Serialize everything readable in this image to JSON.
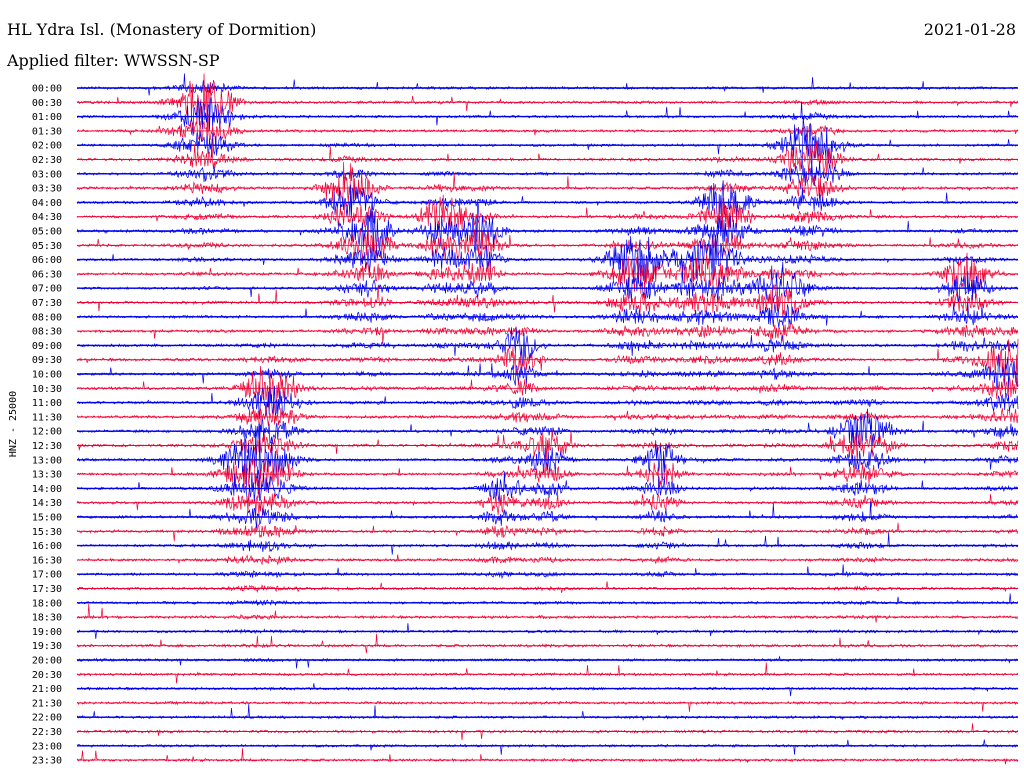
{
  "header": {
    "title": "HL Ydra Isl. (Monastery of Dormition)",
    "date": "2021-01-28",
    "filter": "Applied filter: WWSSN-SP"
  },
  "chart_data": {
    "type": "line",
    "title": "HL Ydra Isl. (Monastery of Dormition)",
    "ylabel": "HNZ - 25000",
    "xlabel": "",
    "tick_labels": [
      "00:00",
      "00:30",
      "01:00",
      "01:30",
      "02:00",
      "02:30",
      "03:00",
      "03:30",
      "04:00",
      "04:30",
      "05:00",
      "05:30",
      "06:00",
      "06:30",
      "07:00",
      "07:30",
      "08:00",
      "08:30",
      "09:00",
      "09:30",
      "10:00",
      "10:30",
      "11:00",
      "11:30",
      "12:00",
      "12:30",
      "13:00",
      "13:30",
      "14:00",
      "14:30",
      "15:00",
      "15:30",
      "16:00",
      "16:30",
      "17:00",
      "17:30",
      "18:00",
      "18:30",
      "19:00",
      "19:30",
      "20:00",
      "20:30",
      "21:00",
      "21:30",
      "22:00",
      "22:30",
      "23:00",
      "23:30"
    ],
    "colors": {
      "even": "#0000ee",
      "odd": "#ee0033"
    },
    "grid": false,
    "legend": "none",
    "bursts": [
      {
        "c": 0.135,
        "w": 0.03,
        "peak_row": 1,
        "end_row": 38,
        "amp": 1.0
      },
      {
        "c": 0.19,
        "w": 0.035,
        "peak_row": 26,
        "end_row": 40,
        "amp": 0.9
      },
      {
        "c": 0.205,
        "w": 0.03,
        "peak_row": 21,
        "end_row": 44,
        "amp": 0.8
      },
      {
        "c": 0.29,
        "w": 0.025,
        "peak_row": 7,
        "end_row": 24,
        "amp": 0.85
      },
      {
        "c": 0.315,
        "w": 0.02,
        "peak_row": 10,
        "end_row": 22,
        "amp": 0.8
      },
      {
        "c": 0.39,
        "w": 0.025,
        "peak_row": 9,
        "end_row": 22,
        "amp": 0.8
      },
      {
        "c": 0.43,
        "w": 0.02,
        "peak_row": 10,
        "end_row": 26,
        "amp": 0.9
      },
      {
        "c": 0.45,
        "w": 0.02,
        "peak_row": 28,
        "end_row": 34,
        "amp": 0.5
      },
      {
        "c": 0.47,
        "w": 0.02,
        "peak_row": 18,
        "end_row": 32,
        "amp": 0.7
      },
      {
        "c": 0.5,
        "w": 0.02,
        "peak_row": 25,
        "end_row": 44,
        "amp": 0.7
      },
      {
        "c": 0.595,
        "w": 0.03,
        "peak_row": 12,
        "end_row": 30,
        "amp": 0.95
      },
      {
        "c": 0.62,
        "w": 0.02,
        "peak_row": 26,
        "end_row": 34,
        "amp": 0.7
      },
      {
        "c": 0.665,
        "w": 0.03,
        "peak_row": 12,
        "end_row": 26,
        "amp": 0.8
      },
      {
        "c": 0.69,
        "w": 0.025,
        "peak_row": 8,
        "end_row": 30,
        "amp": 0.9
      },
      {
        "c": 0.745,
        "w": 0.025,
        "peak_row": 14,
        "end_row": 30,
        "amp": 0.85
      },
      {
        "c": 0.78,
        "w": 0.03,
        "peak_row": 4,
        "end_row": 22,
        "amp": 1.0
      },
      {
        "c": 0.835,
        "w": 0.03,
        "peak_row": 24,
        "end_row": 40,
        "amp": 0.8
      },
      {
        "c": 0.945,
        "w": 0.025,
        "peak_row": 13,
        "end_row": 24,
        "amp": 0.7
      },
      {
        "c": 0.99,
        "w": 0.025,
        "peak_row": 19,
        "end_row": 42,
        "amp": 0.9
      }
    ]
  }
}
